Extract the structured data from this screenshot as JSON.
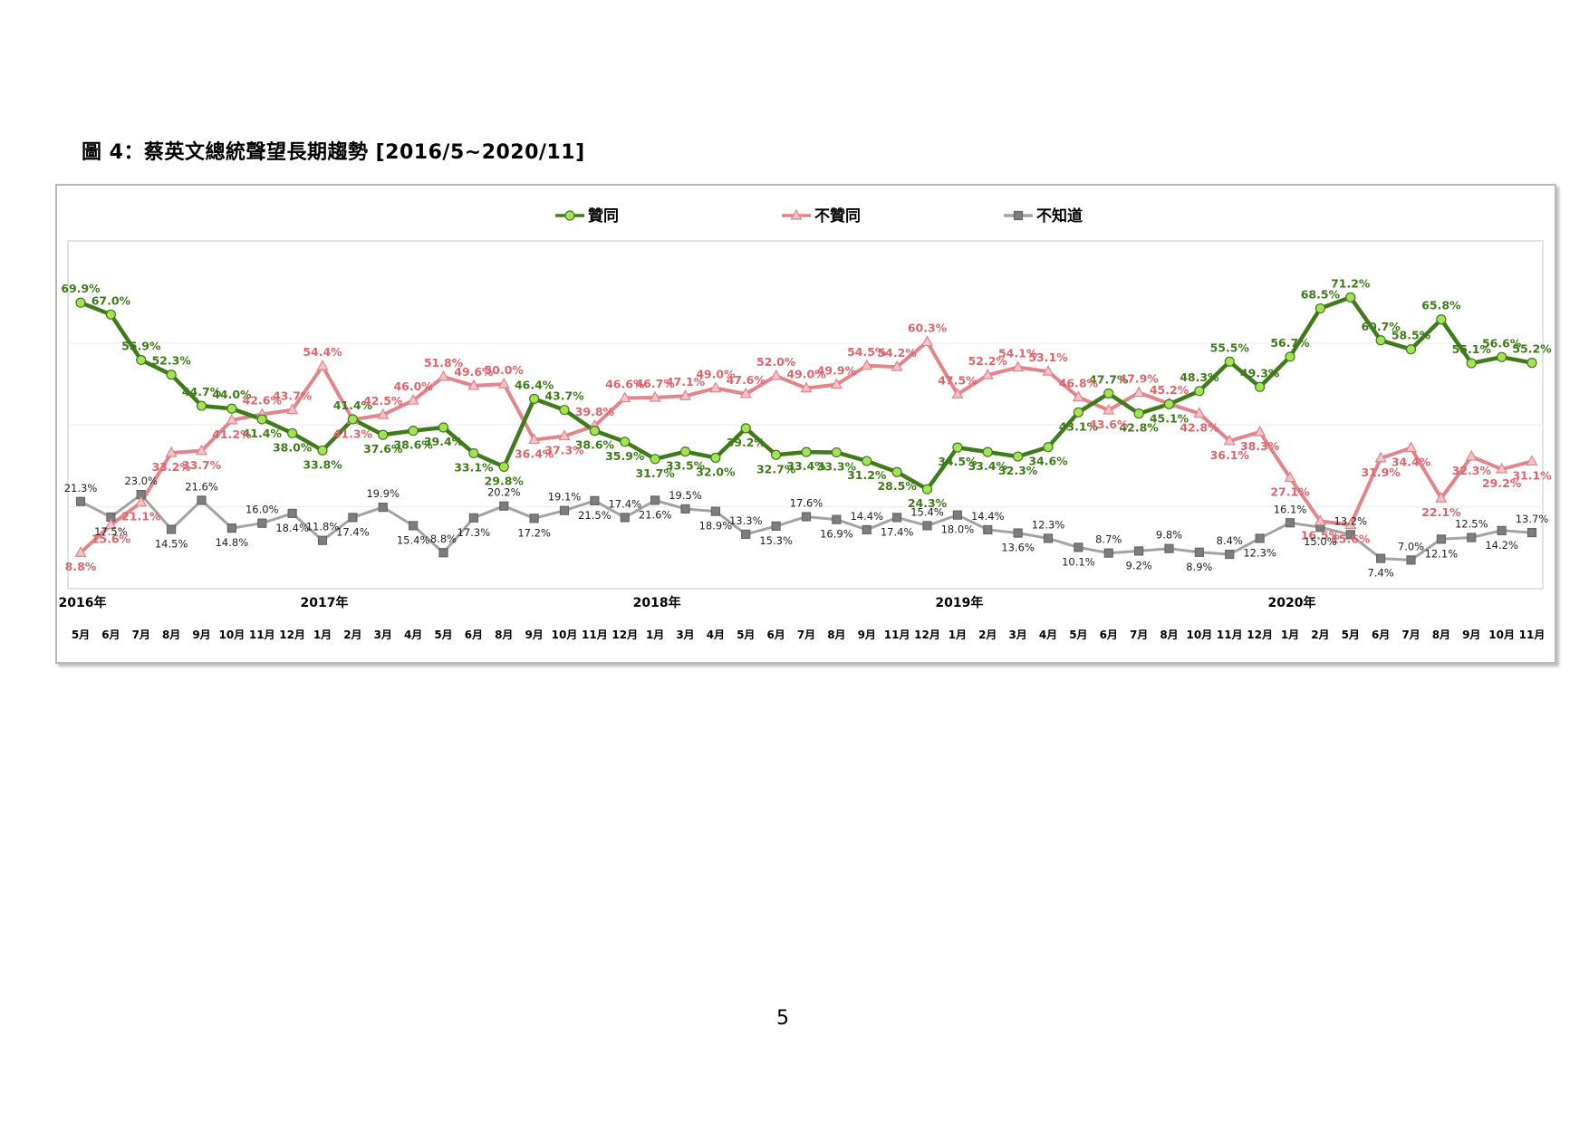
{
  "figure_title": "圖 4：蔡英文總統聲望長期趨勢  [2016/5~2020/11]",
  "page_number": "5",
  "colors": {
    "approve": "#3f7b1a",
    "approve_marker": "#a6e256",
    "disapprove": "#e2848a",
    "disapprove_label": "#e0646c",
    "unknown": "#a3a3a3",
    "unknown_marker": "#7d7d7d"
  },
  "legend": [
    {
      "name": "贊同",
      "marker": "circle"
    },
    {
      "name": "不贊同",
      "marker": "triangle"
    },
    {
      "name": "不知道",
      "marker": "square"
    }
  ],
  "chart_data": {
    "type": "line",
    "legend_position": "top-center",
    "grid": true,
    "ylim": [
      0,
      85
    ],
    "years": [
      {
        "label": "2016年",
        "start_index": 0
      },
      {
        "label": "2017年",
        "start_index": 8
      },
      {
        "label": "2018年",
        "start_index": 19
      },
      {
        "label": "2019年",
        "start_index": 29
      },
      {
        "label": "2020年",
        "start_index": 40
      }
    ],
    "categories": [
      "5月",
      "6月",
      "7月",
      "8月",
      "9月",
      "10月",
      "11月",
      "12月",
      "1月",
      "2月",
      "3月",
      "4月",
      "5月",
      "6月",
      "8月",
      "9月",
      "10月",
      "11月",
      "12月",
      "1月",
      "3月",
      "4月",
      "5月",
      "6月",
      "7月",
      "8月",
      "9月",
      "11月",
      "12月",
      "1月",
      "2月",
      "3月",
      "4月",
      "5月",
      "6月",
      "7月",
      "8月",
      "10月",
      "11月",
      "12月",
      "1月",
      "2月",
      "5月",
      "6月",
      "7月",
      "8月",
      "9月",
      "10月",
      "11月"
    ],
    "series": [
      {
        "name": "贊同",
        "values": [
          69.9,
          67.0,
          55.9,
          52.3,
          44.7,
          44.0,
          41.4,
          38.0,
          33.8,
          41.4,
          37.6,
          38.6,
          39.4,
          33.1,
          29.8,
          46.4,
          43.7,
          38.6,
          35.9,
          31.7,
          33.5,
          32.0,
          39.2,
          32.7,
          33.4,
          33.3,
          31.2,
          28.5,
          24.3,
          34.5,
          33.4,
          32.3,
          34.6,
          43.1,
          47.7,
          42.8,
          45.1,
          48.3,
          55.5,
          49.3,
          56.7,
          68.5,
          71.2,
          60.7,
          58.5,
          65.8,
          55.1,
          56.6,
          55.2
        ]
      },
      {
        "name": "不贊同",
        "values": [
          8.8,
          15.6,
          21.1,
          33.2,
          33.7,
          41.2,
          42.6,
          43.7,
          54.4,
          41.3,
          42.5,
          46.0,
          51.8,
          49.6,
          50.0,
          36.4,
          37.3,
          39.8,
          46.6,
          46.7,
          47.1,
          49.0,
          47.6,
          52.0,
          49.0,
          49.9,
          54.5,
          54.2,
          60.3,
          47.5,
          52.2,
          54.1,
          53.1,
          46.8,
          43.6,
          47.9,
          45.2,
          42.8,
          36.1,
          38.3,
          27.1,
          16.5,
          15.6,
          31.9,
          34.4,
          22.1,
          32.3,
          29.2,
          31.1
        ]
      },
      {
        "name": "不知道",
        "values": [
          21.3,
          17.5,
          23.0,
          14.5,
          21.6,
          14.8,
          16.0,
          18.4,
          11.8,
          17.4,
          19.9,
          15.4,
          8.8,
          17.3,
          20.2,
          17.2,
          19.1,
          21.5,
          17.4,
          21.6,
          19.5,
          18.9,
          13.3,
          15.3,
          17.6,
          16.9,
          14.4,
          17.4,
          15.4,
          18.0,
          14.4,
          13.6,
          12.3,
          10.1,
          8.7,
          9.2,
          9.8,
          8.9,
          8.4,
          12.3,
          16.1,
          15.0,
          13.2,
          7.4,
          7.0,
          12.1,
          12.5,
          14.2,
          13.7
        ]
      }
    ]
  }
}
